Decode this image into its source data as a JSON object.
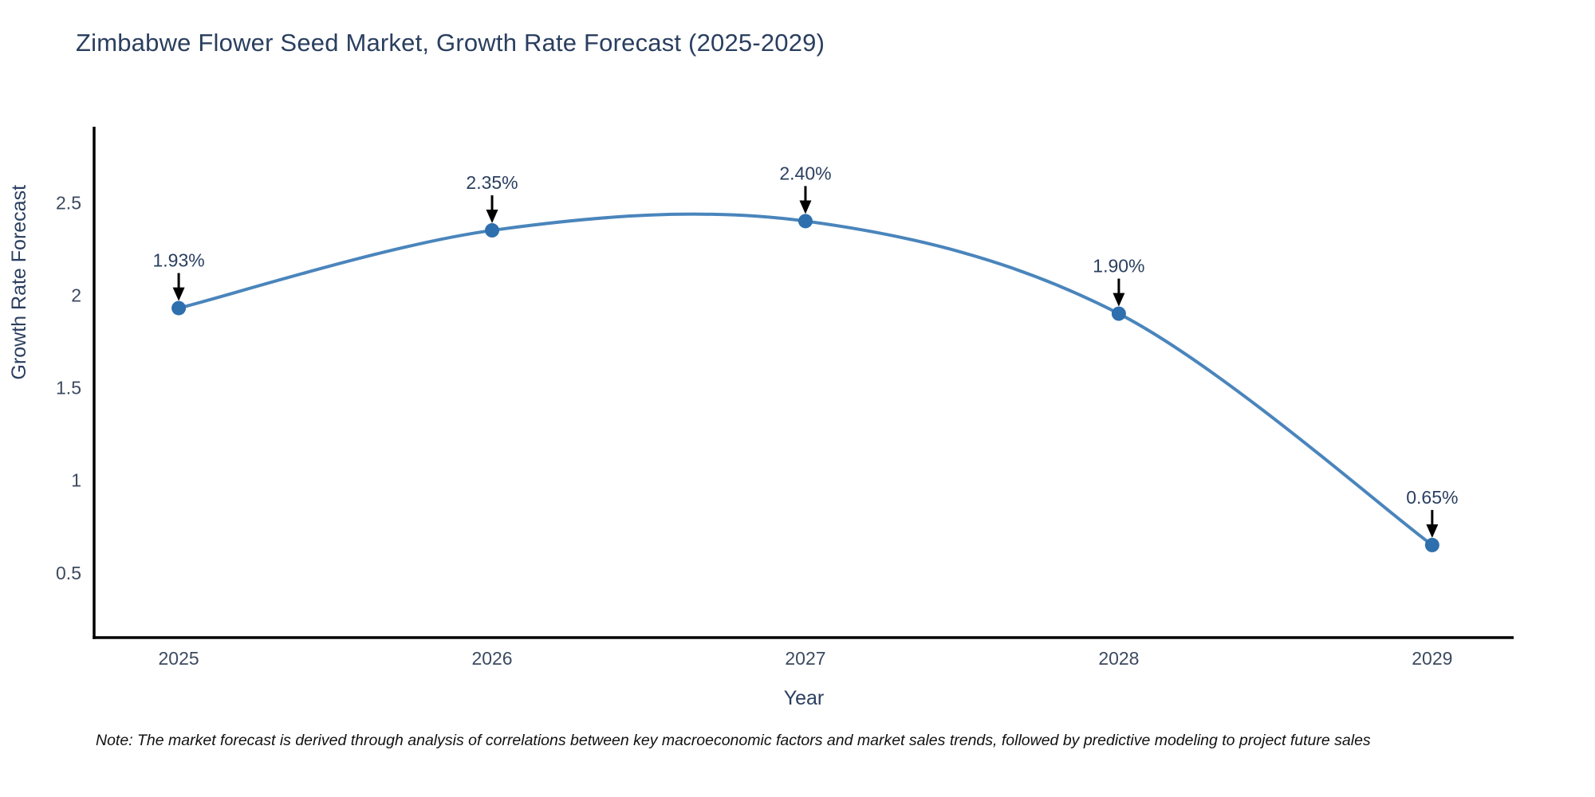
{
  "title": "Zimbabwe Flower Seed Market, Growth Rate Forecast (2025-2029)",
  "note": "Note: The market forecast is derived through analysis of correlations between key macroeconomic factors and market sales trends, followed by predictive modeling to project future sales",
  "chart_data": {
    "type": "line",
    "title": "Zimbabwe Flower Seed Market, Growth Rate Forecast (2025-2029)",
    "xlabel": "Year",
    "ylabel": "Growth Rate Forecast",
    "x": [
      2025,
      2026,
      2027,
      2028,
      2029
    ],
    "values": [
      1.93,
      2.35,
      2.4,
      1.9,
      0.65
    ],
    "point_labels": [
      "1.93%",
      "2.35%",
      "2.40%",
      "1.90%",
      "0.65%"
    ],
    "x_tick_labels": [
      "2025",
      "2026",
      "2027",
      "2028",
      "2029"
    ],
    "y_ticks": [
      0.5,
      1,
      1.5,
      2,
      2.5
    ],
    "y_tick_labels": [
      "0.5",
      "1",
      "1.5",
      "2",
      "2.5"
    ],
    "xlim": [
      2024.73,
      2029.26
    ],
    "ylim": [
      0.15,
      2.91
    ],
    "line_shape": "spline",
    "grid": false,
    "legend": "none",
    "colors": {
      "line": "#4a85bc",
      "marker": "#2e6fae",
      "axis": "#000000",
      "arrow": "#000000",
      "title_text": "#2a3f5f",
      "tick_text": "#3c4a60",
      "annotation_text": "#2a3f5f",
      "background": "#ffffff"
    }
  }
}
